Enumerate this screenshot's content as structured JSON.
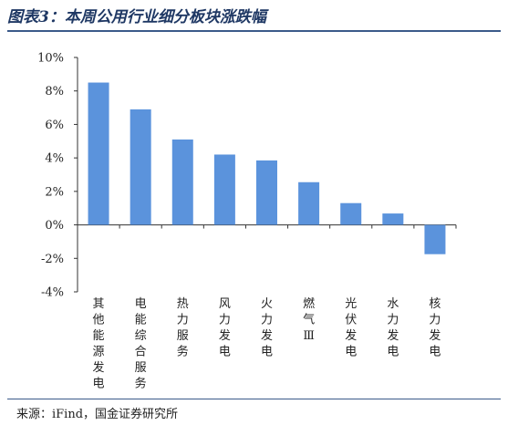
{
  "title": "图表3：本周公用行业细分板块涨跌幅",
  "source": "来源：iFind，国金证券研究所",
  "chart_data": {
    "type": "bar",
    "categories": [
      "其他能源发电",
      "电能综合服务",
      "热力服务",
      "风力发电",
      "火力发电",
      "燃气Ⅲ",
      "光伏发电",
      "水力发电",
      "核力发电"
    ],
    "values": [
      8.5,
      6.9,
      5.1,
      4.2,
      3.85,
      2.55,
      1.3,
      0.68,
      -1.75
    ],
    "ylim": [
      -4,
      10
    ],
    "yticks": [
      "-4%",
      "-2%",
      "0%",
      "2%",
      "4%",
      "6%",
      "8%",
      "10%"
    ],
    "bar_color": "#5b93dc",
    "grid": false
  }
}
